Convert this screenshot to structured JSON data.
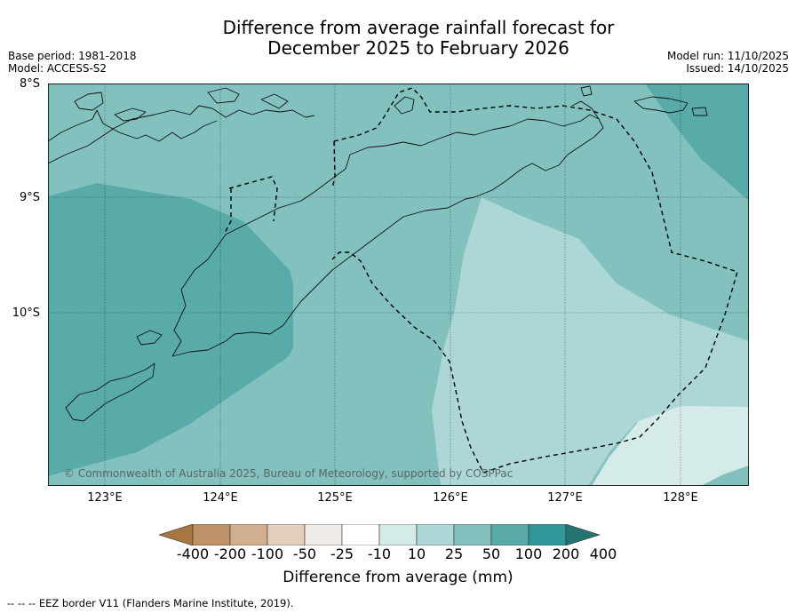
{
  "header": {
    "title_line1": "Difference from average rainfall forecast for",
    "title_line2": "December 2025 to February 2026",
    "base_period": "Base period: 1981-2018",
    "model": "Model: ACCESS-S2",
    "model_run": "Model run: 11/10/2025",
    "issued": "Issued: 14/10/2025"
  },
  "map": {
    "lat_labels": [
      "8°S",
      "9°S",
      "10°S"
    ],
    "lon_labels": [
      "123°E",
      "124°E",
      "125°E",
      "126°E",
      "127°E",
      "128°E"
    ],
    "copyright": "© Commonwealth of Australia 2025, Bureau of Meteorology, supported by COSPPac"
  },
  "legend": {
    "tick_labels": [
      "-400",
      "-200",
      "-100",
      "-50",
      "-25",
      "-10",
      "10",
      "25",
      "50",
      "100",
      "200",
      "400"
    ],
    "colors": [
      "#a87642",
      "#bf9166",
      "#d1af8e",
      "#e3cfbc",
      "#efebe6",
      "#ffffff",
      "#d5ebea",
      "#acd7d6",
      "#83c1bf",
      "#59abaa",
      "#30979a",
      "#237473"
    ],
    "title": "Difference from average (mm)",
    "eez_note": "--  --  -- EEZ border V11 (Flanders Marine Institute, 2019)."
  }
}
